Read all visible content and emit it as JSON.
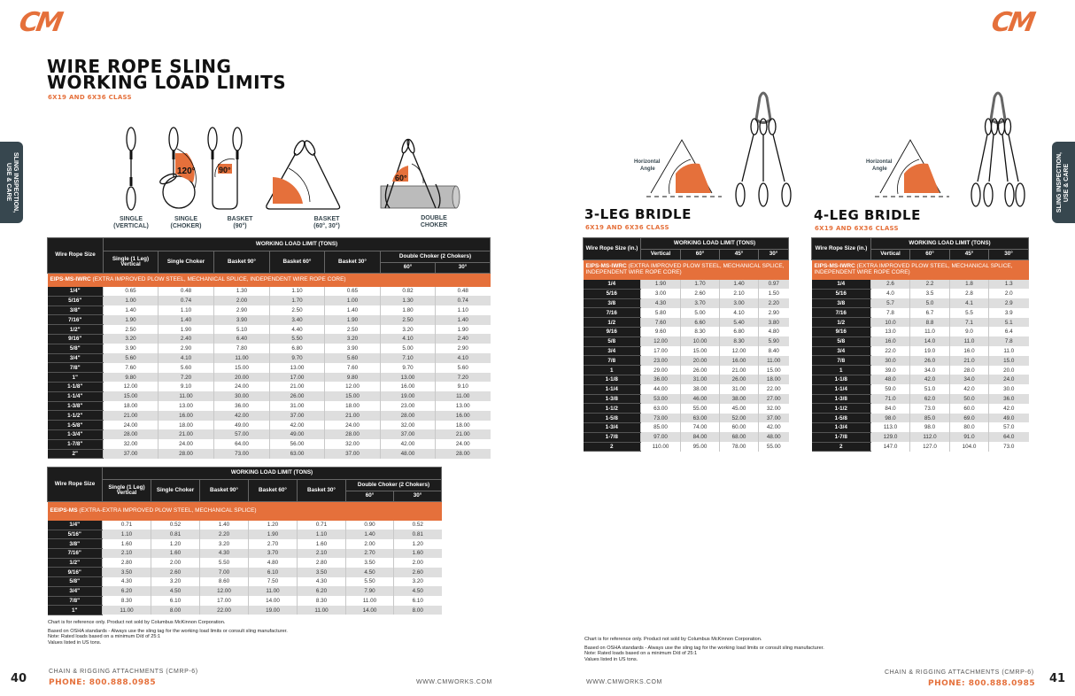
{
  "brand": {
    "logo_text": "CM",
    "accent": "#e5703b",
    "tab_color": "#37474f"
  },
  "side_tab": {
    "line1": "SLING INSPECTION,",
    "line2": "USE & CARE"
  },
  "left_page": {
    "title_line1": "WIRE ROPE SLING",
    "title_line2": "WORKING LOAD LIMITS",
    "subtitle": "6X19 AND 6X36 CLASS",
    "diagrams": [
      {
        "line1": "SINGLE",
        "line2": "(VERTICAL)"
      },
      {
        "line1": "SINGLE",
        "line2": "(CHOKER)",
        "angle": "120°"
      },
      {
        "line1": "BASKET",
        "line2": "(90°)",
        "angle": "90°"
      },
      {
        "line1": "BASKET",
        "line2": "(60°, 30°)"
      },
      {
        "line1": "DOUBLE",
        "line2": "CHOKER",
        "angle": "60°"
      }
    ],
    "notes": {
      "line1": "Chart is for reference only. Product not sold by Columbus McKinnon Corporation.",
      "line2": "Based on OSHA standards - Always use the sling tag for the working load limits or consult sling manufacturer.",
      "line3": "Note: Rated loads based on a minimum D/d of 25:1",
      "line4": "Values listed in US tons."
    },
    "footer": {
      "page_number": "40",
      "catalog": "CHAIN & RIGGING ATTACHMENTS (CMRP-6)",
      "phone": "PHONE: 800.888.0985",
      "website": "WWW.CMWORKS.COM"
    }
  },
  "tables": {
    "iwrc": {
      "size_header": "Wire Rope Size",
      "group_header": "WORKING LOAD LIMIT (TONS)",
      "columns": [
        "Single (1 Leg) Vertical",
        "Single Choker",
        "Basket 90°",
        "Basket 60°",
        "Basket 30°"
      ],
      "double_choker": "Double Choker (2 Chokers)",
      "double_cols": [
        "60°",
        "30°"
      ],
      "section_code": "EIPS-MS-IWRC",
      "section_desc": "(EXTRA IMPROVED PLOW STEEL, MECHANICAL SPLICE, INDEPENDENT WIRE ROPE CORE)",
      "rows": [
        [
          "1/4\"",
          "0.65",
          "0.48",
          "1.30",
          "1.10",
          "0.65",
          "0.82",
          "0.48"
        ],
        [
          "5/16\"",
          "1.00",
          "0.74",
          "2.00",
          "1.70",
          "1.00",
          "1.30",
          "0.74"
        ],
        [
          "3/8\"",
          "1.40",
          "1.10",
          "2.90",
          "2.50",
          "1.40",
          "1.80",
          "1.10"
        ],
        [
          "7/16\"",
          "1.90",
          "1.40",
          "3.90",
          "3.40",
          "1.90",
          "2.50",
          "1.40"
        ],
        [
          "1/2\"",
          "2.50",
          "1.90",
          "5.10",
          "4.40",
          "2.50",
          "3.20",
          "1.90"
        ],
        [
          "9/16\"",
          "3.20",
          "2.40",
          "6.40",
          "5.50",
          "3.20",
          "4.10",
          "2.40"
        ],
        [
          "5/8\"",
          "3.90",
          "2.90",
          "7.80",
          "6.80",
          "3.90",
          "5.00",
          "2.90"
        ],
        [
          "3/4\"",
          "5.60",
          "4.10",
          "11.00",
          "9.70",
          "5.60",
          "7.10",
          "4.10"
        ],
        [
          "7/8\"",
          "7.60",
          "5.60",
          "15.00",
          "13.00",
          "7.60",
          "9.70",
          "5.60"
        ],
        [
          "1\"",
          "9.80",
          "7.20",
          "20.00",
          "17.00",
          "9.80",
          "13.00",
          "7.20"
        ],
        [
          "1-1/8\"",
          "12.00",
          "9.10",
          "24.00",
          "21.00",
          "12.00",
          "16.00",
          "9.10"
        ],
        [
          "1-1/4\"",
          "15.00",
          "11.00",
          "30.00",
          "26.00",
          "15.00",
          "19.00",
          "11.00"
        ],
        [
          "1-3/8\"",
          "18.00",
          "13.00",
          "36.00",
          "31.00",
          "18.00",
          "23.00",
          "13.00"
        ],
        [
          "1-1/2\"",
          "21.00",
          "16.00",
          "42.00",
          "37.00",
          "21.00",
          "28.00",
          "16.00"
        ],
        [
          "1-5/8\"",
          "24.00",
          "18.00",
          "49.00",
          "42.00",
          "24.00",
          "32.00",
          "18.00"
        ],
        [
          "1-3/4\"",
          "28.00",
          "21.00",
          "57.00",
          "49.00",
          "28.00",
          "37.00",
          "21.00"
        ],
        [
          "1-7/8\"",
          "32.00",
          "24.00",
          "64.00",
          "56.00",
          "32.00",
          "42.00",
          "24.00"
        ],
        [
          "2\"",
          "37.00",
          "28.00",
          "73.00",
          "63.00",
          "37.00",
          "48.00",
          "28.00"
        ]
      ]
    },
    "eeips": {
      "size_header": "Wire Rope Size",
      "group_header": "WORKING LOAD LIMIT (TONS)",
      "columns": [
        "Single (1 Leg) Vertical",
        "Single Choker",
        "Basket 90°",
        "Basket 60°",
        "Basket 30°"
      ],
      "double_choker": "Double Choker (2 Chokers)",
      "double_cols": [
        "60°",
        "30°"
      ],
      "section_code": "EEIPS-MS",
      "section_desc": "(EXTRA-EXTRA IMPROVED PLOW STEEL, MECHANICAL SPLICE)",
      "rows": [
        [
          "1/4\"",
          "0.71",
          "0.52",
          "1.40",
          "1.20",
          "0.71",
          "0.90",
          "0.52"
        ],
        [
          "5/16\"",
          "1.10",
          "0.81",
          "2.20",
          "1.90",
          "1.10",
          "1.40",
          "0.81"
        ],
        [
          "3/8\"",
          "1.60",
          "1.20",
          "3.20",
          "2.70",
          "1.60",
          "2.00",
          "1.20"
        ],
        [
          "7/16\"",
          "2.10",
          "1.60",
          "4.30",
          "3.70",
          "2.10",
          "2.70",
          "1.60"
        ],
        [
          "1/2\"",
          "2.80",
          "2.00",
          "5.50",
          "4.80",
          "2.80",
          "3.50",
          "2.00"
        ],
        [
          "9/16\"",
          "3.50",
          "2.60",
          "7.00",
          "6.10",
          "3.50",
          "4.50",
          "2.60"
        ],
        [
          "5/8\"",
          "4.30",
          "3.20",
          "8.60",
          "7.50",
          "4.30",
          "5.50",
          "3.20"
        ],
        [
          "3/4\"",
          "6.20",
          "4.50",
          "12.00",
          "11.00",
          "6.20",
          "7.90",
          "4.50"
        ],
        [
          "7/8\"",
          "8.30",
          "6.10",
          "17.00",
          "14.00",
          "8.30",
          "11.00",
          "6.10"
        ],
        [
          "1\"",
          "11.00",
          "8.00",
          "22.00",
          "19.00",
          "11.00",
          "14.00",
          "8.00"
        ]
      ]
    },
    "bridle3": {
      "size_header": "Wire Rope Size (in.)",
      "group_header": "WORKING LOAD LIMIT (TONS)",
      "columns": [
        "Vertical",
        "60°",
        "45°",
        "30°"
      ],
      "section_code": "EIPS-MS-IWRC",
      "section_desc": "(EXTRA IMPROVED PLOW STEEL, MECHANICAL SPLICE, INDEPENDENT WIRE ROPE CORE)",
      "rows": [
        [
          "1/4",
          "1.90",
          "1.70",
          "1.40",
          "0.97"
        ],
        [
          "5/16",
          "3.00",
          "2.60",
          "2.10",
          "1.50"
        ],
        [
          "3/8",
          "4.30",
          "3.70",
          "3.00",
          "2.20"
        ],
        [
          "7/16",
          "5.80",
          "5.00",
          "4.10",
          "2.90"
        ],
        [
          "1/2",
          "7.60",
          "6.60",
          "5.40",
          "3.80"
        ],
        [
          "9/16",
          "9.60",
          "8.30",
          "6.80",
          "4.80"
        ],
        [
          "5/8",
          "12.00",
          "10.00",
          "8.30",
          "5.90"
        ],
        [
          "3/4",
          "17.00",
          "15.00",
          "12.00",
          "8.40"
        ],
        [
          "7/8",
          "23.00",
          "20.00",
          "16.00",
          "11.00"
        ],
        [
          "1",
          "29.00",
          "26.00",
          "21.00",
          "15.00"
        ],
        [
          "1-1/8",
          "36.00",
          "31.00",
          "26.00",
          "18.00"
        ],
        [
          "1-1/4",
          "44.00",
          "38.00",
          "31.00",
          "22.00"
        ],
        [
          "1-3/8",
          "53.00",
          "46.00",
          "38.00",
          "27.00"
        ],
        [
          "1-1/2",
          "63.00",
          "55.00",
          "45.00",
          "32.00"
        ],
        [
          "1-5/8",
          "73.00",
          "63.00",
          "52.00",
          "37.00"
        ],
        [
          "1-3/4",
          "85.00",
          "74.00",
          "60.00",
          "42.00"
        ],
        [
          "1-7/8",
          "97.00",
          "84.00",
          "68.00",
          "48.00"
        ],
        [
          "2",
          "110.00",
          "95.00",
          "78.00",
          "55.00"
        ]
      ]
    },
    "bridle4": {
      "size_header": "Wire Rope Size (in.)",
      "group_header": "WORKING LOAD LIMIT (TONS)",
      "columns": [
        "Vertical",
        "60°",
        "45°",
        "30°"
      ],
      "section_code": "EIPS-MS-IWRC",
      "section_desc": "(EXTRA IMPROVED PLOW STEEL, MECHANICAL SPLICE, INDEPENDENT WIRE ROPE CORE)",
      "rows": [
        [
          "1/4",
          "2.6",
          "2.2",
          "1.8",
          "1.3"
        ],
        [
          "5/16",
          "4.0",
          "3.5",
          "2.8",
          "2.0"
        ],
        [
          "3/8",
          "5.7",
          "5.0",
          "4.1",
          "2.9"
        ],
        [
          "7/16",
          "7.8",
          "6.7",
          "5.5",
          "3.9"
        ],
        [
          "1/2",
          "10.0",
          "8.8",
          "7.1",
          "5.1"
        ],
        [
          "9/16",
          "13.0",
          "11.0",
          "9.0",
          "6.4"
        ],
        [
          "5/8",
          "16.0",
          "14.0",
          "11.0",
          "7.8"
        ],
        [
          "3/4",
          "22.0",
          "19.0",
          "16.0",
          "11.0"
        ],
        [
          "7/8",
          "30.0",
          "26.0",
          "21.0",
          "15.0"
        ],
        [
          "1",
          "39.0",
          "34.0",
          "28.0",
          "20.0"
        ],
        [
          "1-1/8",
          "48.0",
          "42.0",
          "34.0",
          "24.0"
        ],
        [
          "1-1/4",
          "59.0",
          "51.0",
          "42.0",
          "30.0"
        ],
        [
          "1-3/8",
          "71.0",
          "62.0",
          "50.0",
          "36.0"
        ],
        [
          "1-1/2",
          "84.0",
          "73.0",
          "60.0",
          "42.0"
        ],
        [
          "1-5/8",
          "98.0",
          "85.0",
          "69.0",
          "49.0"
        ],
        [
          "1-3/4",
          "113.0",
          "98.0",
          "80.0",
          "57.0"
        ],
        [
          "1-7/8",
          "129.0",
          "112.0",
          "91.0",
          "64.0"
        ],
        [
          "2",
          "147.0",
          "127.0",
          "104.0",
          "73.0"
        ]
      ]
    }
  },
  "right_page": {
    "bridle3": {
      "title": "3-LEG BRIDLE",
      "subtitle": "6X19 AND 6X36 CLASS",
      "angle_label_1": "Horizontal",
      "angle_label_2": "Angle"
    },
    "bridle4": {
      "title": "4-LEG BRIDLE",
      "subtitle": "6X19 AND 6X36 CLASS",
      "angle_label_1": "Horizontal",
      "angle_label_2": "Angle"
    },
    "notes": {
      "line1": "Chart is for reference only. Product not sold by Columbus McKinnon Corporation.",
      "line2": "Based on OSHA standards - Always use the sling tag for the working load limits or consult sling manufacturer.",
      "line3": "Note: Rated loads based on a minimum D/d of 25:1",
      "line4": "Values listed in US tons."
    },
    "footer": {
      "page_number": "41",
      "catalog": "CHAIN & RIGGING ATTACHMENTS (CMRP-6)",
      "phone": "PHONE: 800.888.0985",
      "website": "WWW.CMWORKS.COM"
    }
  }
}
